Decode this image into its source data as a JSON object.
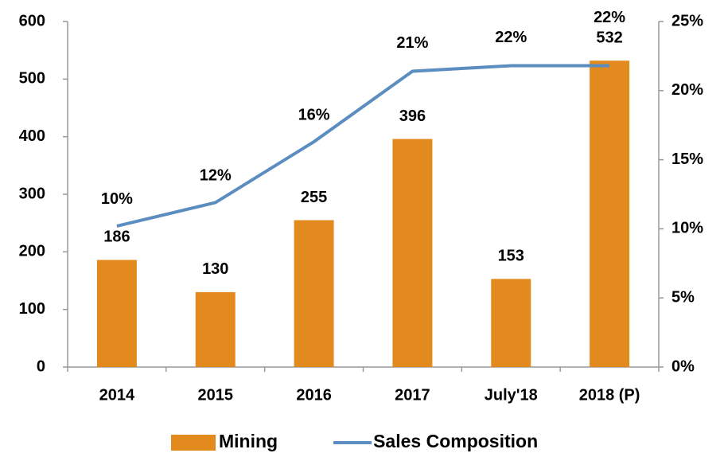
{
  "chart_data": {
    "type": "combo",
    "categories": [
      "2014",
      "2015",
      "2016",
      "2017",
      "July'18",
      "2018 (P)"
    ],
    "series": [
      {
        "name": "Mining",
        "type": "bar",
        "color": "#e38a1e",
        "values": [
          186,
          130,
          255,
          396,
          153,
          532
        ]
      },
      {
        "name": "Sales Composition",
        "type": "line",
        "axis": "y2",
        "color": "#5b8dc0",
        "values": [
          10.2,
          11.9,
          16.3,
          21.4,
          21.8,
          21.8
        ],
        "value_labels": [
          "10%",
          "12%",
          "16%",
          "21%",
          "22%",
          "22%"
        ]
      }
    ],
    "ylim": [
      0,
      600
    ],
    "yticks": [
      0,
      100,
      200,
      300,
      400,
      500,
      600
    ],
    "y2lim": [
      0,
      25
    ],
    "y2ticks": [
      {
        "value": 0,
        "label": "0%"
      },
      {
        "value": 5,
        "label": "5%"
      },
      {
        "value": 10,
        "label": "10%"
      },
      {
        "value": 15,
        "label": "15%"
      },
      {
        "value": 20,
        "label": "20%"
      },
      {
        "value": 25,
        "label": "25%"
      }
    ],
    "grid": false,
    "legend": "bottom"
  }
}
